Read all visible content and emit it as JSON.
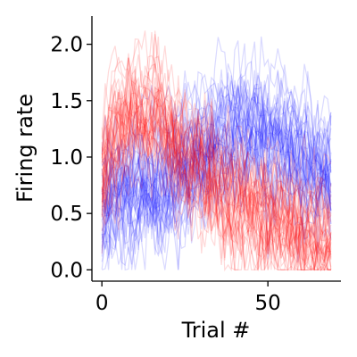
{
  "chart_data": {
    "type": "line",
    "xlabel": "Trial #",
    "ylabel": "Firing rate",
    "xlim": [
      -3,
      72
    ],
    "ylim": [
      -0.1,
      2.25
    ],
    "xticks": [
      {
        "value": 0,
        "label": "0"
      },
      {
        "value": 50,
        "label": "50"
      }
    ],
    "yticks": [
      {
        "value": 0.0,
        "label": "0.0"
      },
      {
        "value": 0.5,
        "label": "0.5"
      },
      {
        "value": 1.0,
        "label": "1.0"
      },
      {
        "value": 1.5,
        "label": "1.5"
      },
      {
        "value": 2.0,
        "label": "2.0"
      }
    ],
    "grid": false,
    "n_trials": 70,
    "series": [
      {
        "color": "#0000ff",
        "opacity": 0.15,
        "n_traces": 40,
        "noise": 0.2,
        "mean_profile": [
          {
            "x": 0,
            "y": 0.55
          },
          {
            "x": 5,
            "y": 0.68
          },
          {
            "x": 10,
            "y": 0.75
          },
          {
            "x": 15,
            "y": 0.78
          },
          {
            "x": 20,
            "y": 0.8
          },
          {
            "x": 25,
            "y": 0.9
          },
          {
            "x": 30,
            "y": 1.05
          },
          {
            "x": 35,
            "y": 1.2
          },
          {
            "x": 40,
            "y": 1.25
          },
          {
            "x": 45,
            "y": 1.25
          },
          {
            "x": 50,
            "y": 1.2
          },
          {
            "x": 55,
            "y": 1.15
          },
          {
            "x": 60,
            "y": 1.05
          },
          {
            "x": 65,
            "y": 0.95
          },
          {
            "x": 69,
            "y": 0.9
          }
        ]
      },
      {
        "color": "#ff0000",
        "opacity": 0.15,
        "n_traces": 40,
        "noise": 0.2,
        "mean_profile": [
          {
            "x": 0,
            "y": 0.85
          },
          {
            "x": 3,
            "y": 1.15
          },
          {
            "x": 6,
            "y": 1.3
          },
          {
            "x": 10,
            "y": 1.38
          },
          {
            "x": 15,
            "y": 1.35
          },
          {
            "x": 20,
            "y": 1.2
          },
          {
            "x": 25,
            "y": 1.0
          },
          {
            "x": 30,
            "y": 0.9
          },
          {
            "x": 35,
            "y": 0.75
          },
          {
            "x": 40,
            "y": 0.62
          },
          {
            "x": 45,
            "y": 0.55
          },
          {
            "x": 50,
            "y": 0.48
          },
          {
            "x": 55,
            "y": 0.4
          },
          {
            "x": 60,
            "y": 0.32
          },
          {
            "x": 65,
            "y": 0.28
          },
          {
            "x": 69,
            "y": 0.25
          }
        ]
      }
    ]
  }
}
